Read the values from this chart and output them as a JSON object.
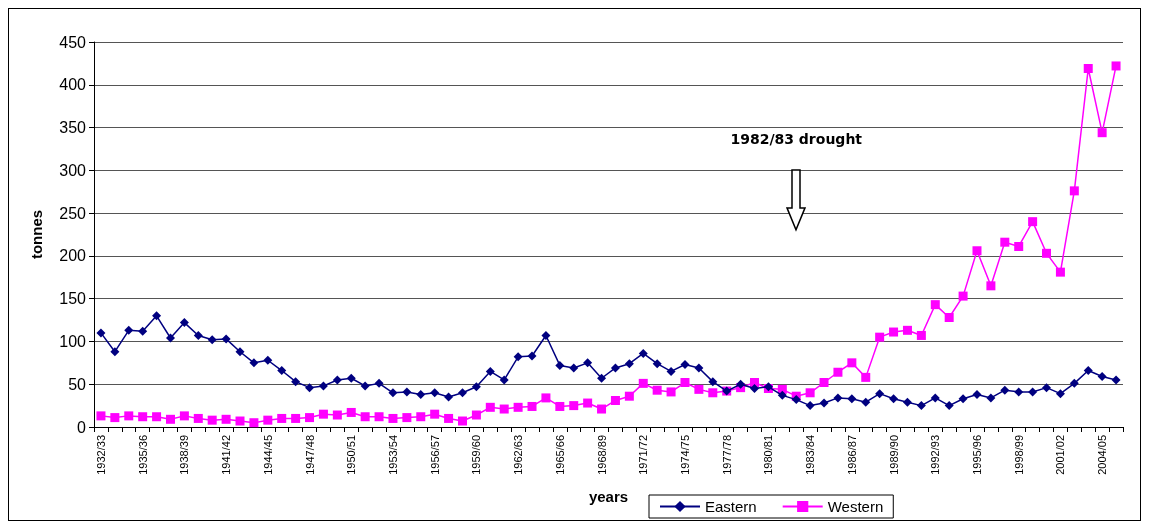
{
  "chart_data": {
    "type": "line",
    "xlabel": "years",
    "ylabel": "tonnes",
    "categories": [
      "1932/33",
      null,
      null,
      "1935/36",
      null,
      null,
      "1938/39",
      null,
      null,
      "1941/42",
      null,
      null,
      "1944/45",
      null,
      null,
      "1947/48",
      null,
      null,
      "1950/51",
      null,
      null,
      "1953/54",
      null,
      null,
      "1956/57",
      null,
      null,
      "1959/60",
      null,
      null,
      "1962/63",
      null,
      null,
      "1965/66",
      null,
      null,
      "1968/89",
      null,
      null,
      "1971/72",
      null,
      null,
      "1974/75",
      null,
      null,
      "1977/78",
      null,
      null,
      "1980/81",
      null,
      null,
      "1983/84",
      null,
      null,
      "1986/87",
      null,
      null,
      "1989/90",
      null,
      null,
      "1992/93",
      null,
      null,
      "1995/96",
      null,
      null,
      "1998/99",
      null,
      null,
      "2001/02",
      null,
      null,
      "2004/05",
      null
    ],
    "series": [
      {
        "name": "Eastern",
        "color": "#000080",
        "marker": "diamond",
        "values": [
          110,
          88,
          113,
          112,
          130,
          104,
          122,
          107,
          102,
          103,
          88,
          75,
          78,
          66,
          53,
          46,
          48,
          55,
          57,
          48,
          51,
          40,
          41,
          38,
          40,
          35,
          40,
          47,
          65,
          55,
          82,
          83,
          107,
          72,
          69,
          75,
          57,
          69,
          74,
          86,
          74,
          65,
          73,
          69,
          53,
          42,
          50,
          45,
          47,
          37,
          32,
          25,
          28,
          34,
          33,
          29,
          39,
          33,
          29,
          25,
          34,
          25,
          33,
          38,
          34,
          43,
          41,
          41,
          46,
          39,
          51,
          66,
          59,
          55
        ]
      },
      {
        "name": "Western",
        "color": "#ff00ff",
        "marker": "square",
        "values": [
          13,
          11,
          13,
          12,
          12,
          9,
          13,
          10,
          8,
          9,
          7,
          5,
          8,
          10,
          10,
          11,
          15,
          14,
          17,
          12,
          12,
          10,
          11,
          12,
          15,
          10,
          7,
          14,
          23,
          21,
          23,
          24,
          34,
          24,
          25,
          28,
          21,
          31,
          36,
          51,
          43,
          41,
          52,
          44,
          40,
          42,
          46,
          52,
          45,
          44,
          36,
          40,
          52,
          64,
          75,
          58,
          105,
          111,
          113,
          107,
          143,
          128,
          153,
          206,
          165,
          216,
          211,
          240,
          203,
          181,
          276,
          419,
          344,
          422
        ]
      }
    ],
    "ylim": [
      0,
      450
    ],
    "yticks": [
      0,
      50,
      100,
      150,
      200,
      250,
      300,
      350,
      400,
      450
    ],
    "grid": "y",
    "legend": "bottom",
    "annotations": [
      "1982/83 drought"
    ]
  }
}
